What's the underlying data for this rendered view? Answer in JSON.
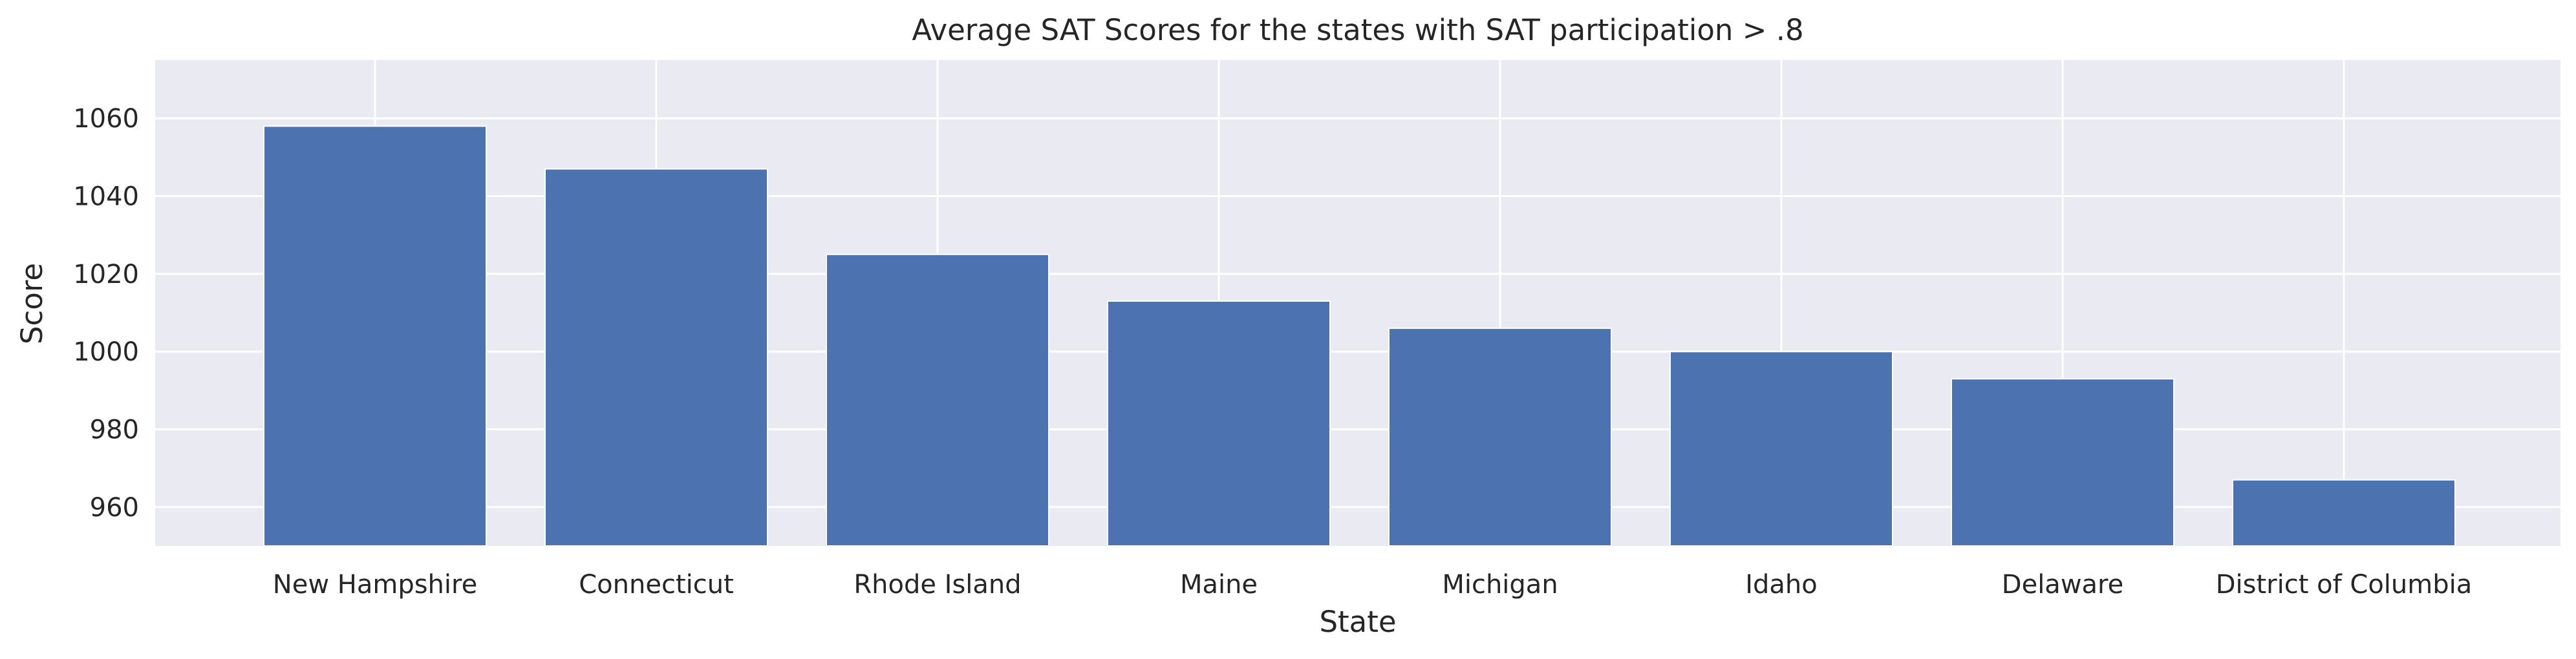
{
  "chart_data": {
    "type": "bar",
    "title": "Average SAT Scores for the states with SAT participation > .8",
    "xlabel": "State",
    "ylabel": "Score",
    "categories": [
      "New Hampshire",
      "Connecticut",
      "Rhode Island",
      "Maine",
      "Michigan",
      "Idaho",
      "Delaware",
      "District of Columbia"
    ],
    "values": [
      1058,
      1047,
      1025,
      1013,
      1006,
      1000,
      993,
      967
    ],
    "ylim": [
      950,
      1075
    ],
    "yticks": [
      960,
      980,
      1000,
      1020,
      1040,
      1060
    ],
    "grid": true,
    "colors": {
      "bar": "#4c72b0",
      "plot_background": "#eaeaf2",
      "grid": "#ffffff"
    }
  }
}
